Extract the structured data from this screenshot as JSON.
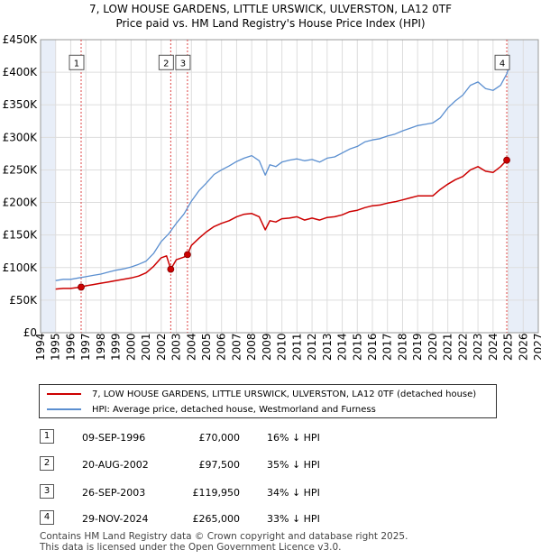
{
  "title_line1": "7, LOW HOUSE GARDENS, LITTLE URSWICK, ULVERSTON, LA12 0TF",
  "title_line2": "Price paid vs. HM Land Registry's House Price Index (HPI)",
  "legend": {
    "property": "7, LOW HOUSE GARDENS, LITTLE URSWICK, ULVERSTON, LA12 0TF (detached house)",
    "hpi": "HPI: Average price, detached house, Westmorland and Furness"
  },
  "colors": {
    "property": "#cc0000",
    "hpi": "#5b8fd0",
    "shade": "#e8eef8",
    "grid": "#dddddd",
    "vline": "#dd4444"
  },
  "transactions": [
    {
      "num": "1",
      "date": "09-SEP-1996",
      "price": "£70,000",
      "hpi": "16% ↓ HPI"
    },
    {
      "num": "2",
      "date": "20-AUG-2002",
      "price": "£97,500",
      "hpi": "35% ↓ HPI"
    },
    {
      "num": "3",
      "date": "26-SEP-2003",
      "price": "£119,950",
      "hpi": "34% ↓ HPI"
    },
    {
      "num": "4",
      "date": "29-NOV-2024",
      "price": "£265,000",
      "hpi": "33% ↓ HPI"
    }
  ],
  "footer": {
    "line1": "Contains HM Land Registry data © Crown copyright and database right 2025.",
    "line2": "This data is licensed under the Open Government Licence v3.0."
  },
  "chart_data": {
    "type": "line",
    "title": "Price paid vs. HM Land Registry's House Price Index (HPI)",
    "xlim": [
      1994,
      2027
    ],
    "ylim": [
      0,
      450000
    ],
    "y_ticks": [
      0,
      50000,
      100000,
      150000,
      200000,
      250000,
      300000,
      350000,
      400000,
      450000
    ],
    "y_tick_labels": [
      "£0",
      "£50K",
      "£100K",
      "£150K",
      "£200K",
      "£250K",
      "£300K",
      "£350K",
      "£400K",
      "£450K"
    ],
    "x_ticks": [
      1994,
      1995,
      1996,
      1997,
      1998,
      1999,
      2000,
      2001,
      2002,
      2003,
      2004,
      2005,
      2006,
      2007,
      2008,
      2009,
      2010,
      2011,
      2012,
      2013,
      2014,
      2015,
      2016,
      2017,
      2018,
      2019,
      2020,
      2021,
      2022,
      2023,
      2024,
      2025,
      2026,
      2027
    ],
    "shaded_ranges": [
      [
        1994,
        1995.0
      ],
      [
        2025.0,
        2027
      ]
    ],
    "series": [
      {
        "name": "HPI: Average price, detached house, Westmorland and Furness",
        "x": [
          1995.0,
          1995.5,
          1996.0,
          1996.5,
          1997.0,
          1997.5,
          1998.0,
          1998.5,
          1999.0,
          1999.5,
          2000.0,
          2000.5,
          2001.0,
          2001.5,
          2002.0,
          2002.5,
          2003.0,
          2003.5,
          2004.0,
          2004.5,
          2005.0,
          2005.5,
          2006.0,
          2006.5,
          2007.0,
          2007.5,
          2008.0,
          2008.5,
          2008.9,
          2009.2,
          2009.6,
          2010.0,
          2010.5,
          2011.0,
          2011.5,
          2012.0,
          2012.5,
          2013.0,
          2013.5,
          2014.0,
          2014.5,
          2015.0,
          2015.5,
          2016.0,
          2016.5,
          2017.0,
          2017.5,
          2018.0,
          2018.5,
          2019.0,
          2019.5,
          2020.0,
          2020.5,
          2021.0,
          2021.5,
          2022.0,
          2022.5,
          2023.0,
          2023.5,
          2024.0,
          2024.5,
          2024.92,
          2025.0
        ],
        "values": [
          80000,
          82000,
          82000,
          84000,
          86000,
          88000,
          90000,
          93000,
          96000,
          98000,
          101000,
          105000,
          110000,
          122000,
          140000,
          152000,
          168000,
          182000,
          202000,
          218000,
          230000,
          243000,
          250000,
          256000,
          263000,
          268000,
          272000,
          264000,
          242000,
          258000,
          255000,
          262000,
          265000,
          267000,
          264000,
          266000,
          262000,
          268000,
          270000,
          276000,
          282000,
          286000,
          293000,
          296000,
          298000,
          302000,
          305000,
          310000,
          314000,
          318000,
          320000,
          322000,
          330000,
          345000,
          356000,
          365000,
          380000,
          385000,
          375000,
          372000,
          380000,
          398000,
          404000
        ]
      },
      {
        "name": "7, LOW HOUSE GARDENS, LITTLE URSWICK, ULVERSTON, LA12 0TF (detached house)",
        "x": [
          1995.0,
          1995.5,
          1996.0,
          1996.69,
          1997.0,
          1997.5,
          1998.0,
          1998.5,
          1999.0,
          1999.5,
          2000.0,
          2000.5,
          2001.0,
          2001.5,
          2002.0,
          2002.35,
          2002.63,
          2003.0,
          2003.5,
          2003.74,
          2004.0,
          2004.5,
          2005.0,
          2005.5,
          2006.0,
          2006.5,
          2007.0,
          2007.5,
          2008.0,
          2008.5,
          2008.9,
          2009.2,
          2009.6,
          2010.0,
          2010.5,
          2011.0,
          2011.5,
          2012.0,
          2012.5,
          2013.0,
          2013.5,
          2014.0,
          2014.5,
          2015.0,
          2015.5,
          2016.0,
          2016.5,
          2017.0,
          2017.5,
          2018.0,
          2018.5,
          2019.0,
          2019.5,
          2020.0,
          2020.5,
          2021.0,
          2021.5,
          2022.0,
          2022.5,
          2023.0,
          2023.5,
          2024.0,
          2024.5,
          2024.91,
          2025.0
        ],
        "values": [
          67000,
          68000,
          68000,
          70000,
          72000,
          74000,
          76000,
          78000,
          80000,
          82000,
          84000,
          87000,
          92000,
          102000,
          115000,
          118000,
          97500,
          112000,
          116000,
          119950,
          134000,
          145000,
          155000,
          163000,
          168000,
          172000,
          178000,
          182000,
          183000,
          178000,
          158000,
          172000,
          170000,
          175000,
          176000,
          178000,
          173000,
          176000,
          173000,
          177000,
          178000,
          181000,
          186000,
          188000,
          192000,
          195000,
          196000,
          199000,
          201000,
          204000,
          207000,
          210000,
          210000,
          210000,
          220000,
          228000,
          235000,
          240000,
          250000,
          255000,
          248000,
          246000,
          255000,
          265000,
          268000
        ]
      }
    ],
    "sale_points": [
      {
        "label": "1",
        "x": 1996.69,
        "value": 70000
      },
      {
        "label": "2",
        "x": 2002.63,
        "value": 97500
      },
      {
        "label": "3",
        "x": 2003.74,
        "value": 119950
      },
      {
        "label": "4",
        "x": 2024.91,
        "value": 265000
      }
    ]
  }
}
